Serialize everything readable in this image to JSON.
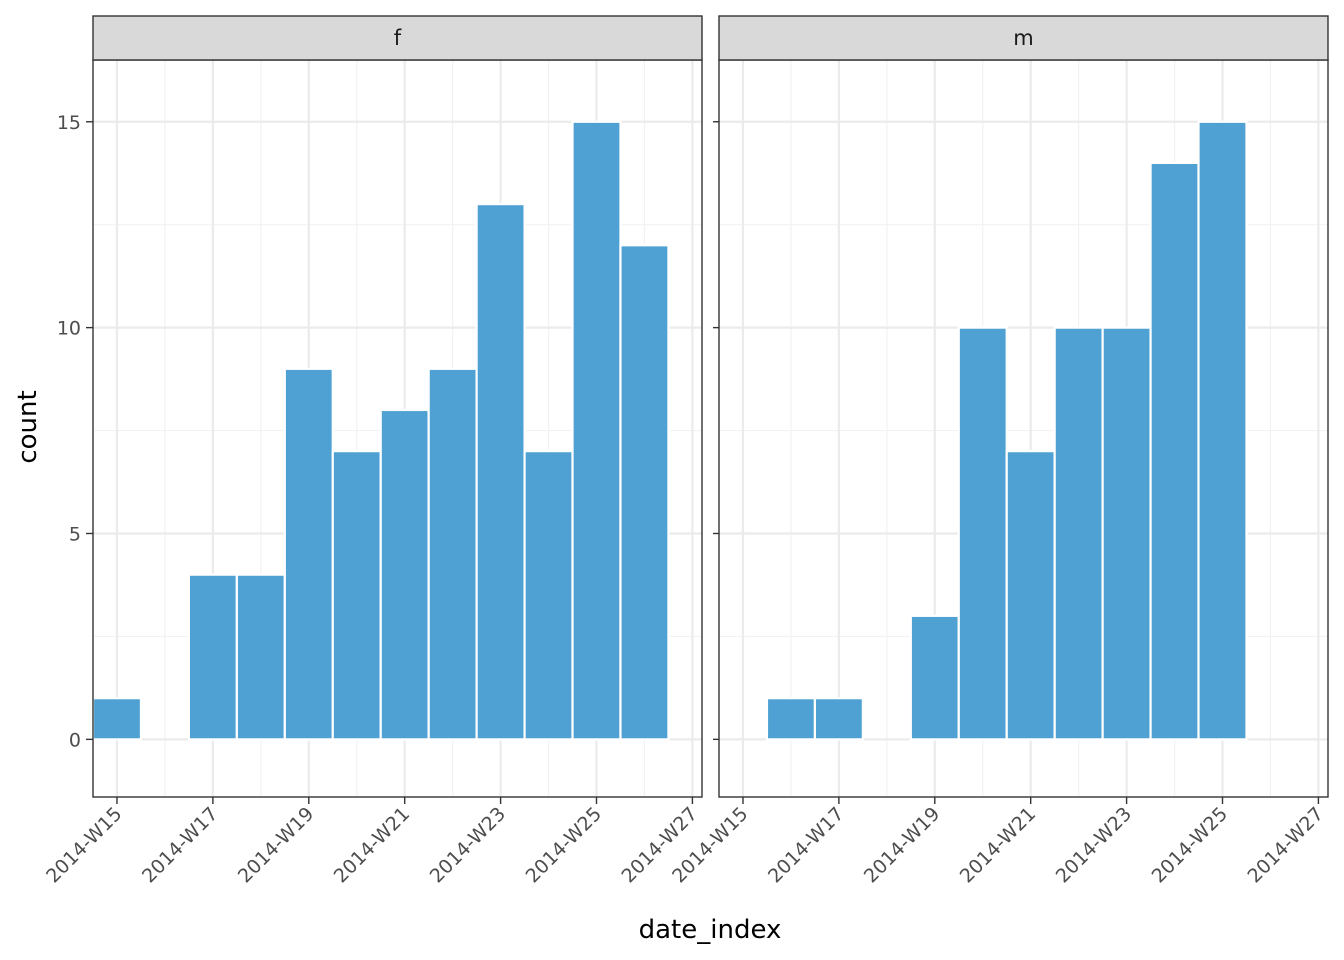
{
  "chart_data": {
    "type": "bar",
    "xlabel": "date_index",
    "ylabel": "count",
    "ylim": [
      -1.4,
      16.5
    ],
    "yticks": [
      0,
      5,
      10,
      15
    ],
    "weeks": [
      "2014-W15",
      "2014-W16",
      "2014-W17",
      "2014-W18",
      "2014-W19",
      "2014-W20",
      "2014-W21",
      "2014-W22",
      "2014-W23",
      "2014-W24",
      "2014-W25",
      "2014-W26",
      "2014-W27"
    ],
    "x_tick_labels": [
      "2014-W15",
      "2014-W17",
      "2014-W19",
      "2014-W21",
      "2014-W23",
      "2014-W25",
      "2014-W27"
    ],
    "bar_color": "#4a9fd1",
    "grid": true,
    "facets": [
      {
        "label": "f",
        "values": {
          "2014-W15": 1,
          "2014-W16": 0,
          "2014-W17": 4,
          "2014-W18": 4,
          "2014-W19": 9,
          "2014-W20": 7,
          "2014-W21": 8,
          "2014-W22": 9,
          "2014-W23": 13,
          "2014-W24": 7,
          "2014-W25": 15,
          "2014-W26": 12
        }
      },
      {
        "label": "m",
        "values": {
          "2014-W16": 1,
          "2014-W17": 1,
          "2014-W18": 0,
          "2014-W19": 3,
          "2014-W20": 10,
          "2014-W21": 7,
          "2014-W22": 10,
          "2014-W23": 10,
          "2014-W24": 14,
          "2014-W25": 15
        }
      }
    ]
  }
}
